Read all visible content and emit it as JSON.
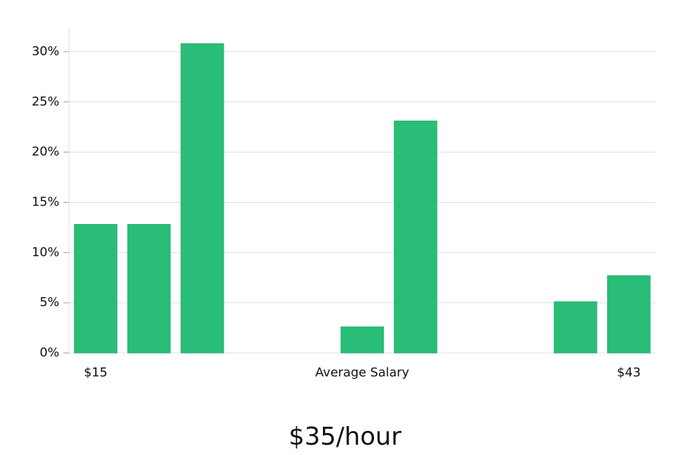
{
  "chart_data": {
    "type": "bar",
    "subtitle": "$35/hour",
    "x_label": "Average Salary",
    "categories": [
      "$15",
      null,
      null,
      null,
      null,
      null,
      null,
      null,
      null,
      null,
      "$43"
    ],
    "values": [
      12.8,
      12.8,
      30.8,
      0,
      0,
      2.6,
      23.1,
      0,
      0,
      5.1,
      7.7
    ],
    "color": "#2abd77",
    "ylim": [
      0,
      32.4
    ],
    "yticks": [
      {
        "value": 0,
        "label": "0%"
      },
      {
        "value": 5,
        "label": "5%"
      },
      {
        "value": 10,
        "label": "10%"
      },
      {
        "value": 15,
        "label": "15%"
      },
      {
        "value": 20,
        "label": "20%"
      },
      {
        "value": 25,
        "label": "25%"
      },
      {
        "value": 30,
        "label": "30%"
      }
    ],
    "grid": true
  }
}
